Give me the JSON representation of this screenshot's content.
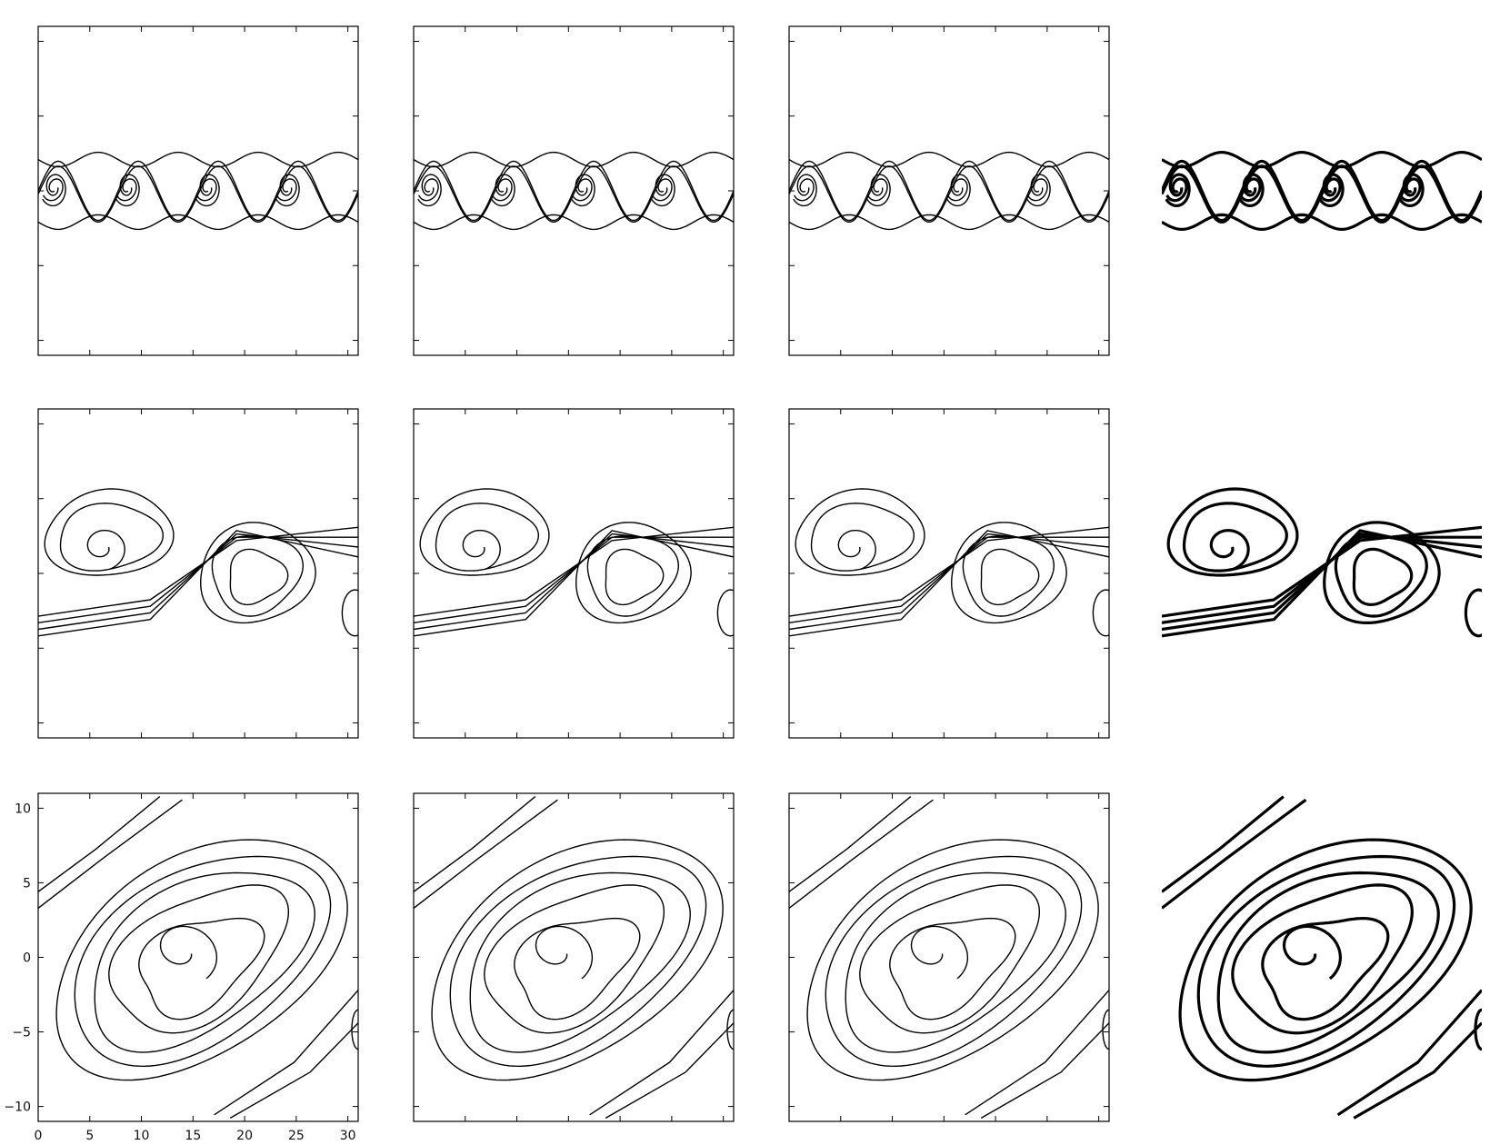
{
  "chart_data": [
    {
      "type": "contour",
      "row": 1,
      "col": 1,
      "stage": "early",
      "xlim": [
        0,
        31
      ],
      "ylim": [
        -11,
        11
      ],
      "x_ticks": [
        0,
        5,
        10,
        15,
        20,
        25,
        30
      ],
      "y_ticks": [
        -10,
        -5,
        0,
        5,
        10
      ],
      "frame": true,
      "grid": false
    },
    {
      "type": "contour",
      "row": 1,
      "col": 2,
      "stage": "early",
      "xlim": [
        0,
        31
      ],
      "ylim": [
        -11,
        11
      ],
      "x_ticks": [
        0,
        5,
        10,
        15,
        20,
        25,
        30
      ],
      "y_ticks": [
        -10,
        -5,
        0,
        5,
        10
      ],
      "frame": true,
      "grid": false
    },
    {
      "type": "contour",
      "row": 1,
      "col": 3,
      "stage": "early",
      "xlim": [
        0,
        31
      ],
      "ylim": [
        -11,
        11
      ],
      "x_ticks": [
        0,
        5,
        10,
        15,
        20,
        25,
        30
      ],
      "y_ticks": [
        -10,
        -5,
        0,
        5,
        10
      ],
      "frame": true,
      "grid": false
    },
    {
      "type": "contour",
      "row": 1,
      "col": 4,
      "stage": "early",
      "xlim": [
        0,
        31
      ],
      "ylim": [
        -11,
        11
      ],
      "frame": false,
      "grid": false
    },
    {
      "type": "contour",
      "row": 2,
      "col": 1,
      "stage": "middle",
      "xlim": [
        0,
        31
      ],
      "ylim": [
        -11,
        11
      ],
      "x_ticks": [
        0,
        5,
        10,
        15,
        20,
        25,
        30
      ],
      "y_ticks": [
        -10,
        -5,
        0,
        5,
        10
      ],
      "frame": true,
      "grid": false
    },
    {
      "type": "contour",
      "row": 2,
      "col": 2,
      "stage": "middle",
      "xlim": [
        0,
        31
      ],
      "ylim": [
        -11,
        11
      ],
      "x_ticks": [
        0,
        5,
        10,
        15,
        20,
        25,
        30
      ],
      "y_ticks": [
        -10,
        -5,
        0,
        5,
        10
      ],
      "frame": true,
      "grid": false
    },
    {
      "type": "contour",
      "row": 2,
      "col": 3,
      "stage": "middle",
      "xlim": [
        0,
        31
      ],
      "ylim": [
        -11,
        11
      ],
      "x_ticks": [
        0,
        5,
        10,
        15,
        20,
        25,
        30
      ],
      "y_ticks": [
        -10,
        -5,
        0,
        5,
        10
      ],
      "frame": true,
      "grid": false
    },
    {
      "type": "contour",
      "row": 2,
      "col": 4,
      "stage": "middle",
      "xlim": [
        0,
        31
      ],
      "ylim": [
        -11,
        11
      ],
      "frame": false,
      "grid": false
    },
    {
      "type": "contour",
      "row": 3,
      "col": 1,
      "stage": "late",
      "xlim": [
        0,
        31
      ],
      "ylim": [
        -11,
        11
      ],
      "x_ticks": [
        0,
        5,
        10,
        15,
        20,
        25,
        30
      ],
      "y_ticks": [
        -10,
        -5,
        0,
        5,
        10
      ],
      "x_tick_labels": [
        "0",
        "5",
        "10",
        "15",
        "20",
        "25",
        "30"
      ],
      "y_tick_labels": [
        "10",
        "5",
        "0",
        "−5",
        "−10"
      ],
      "frame": true,
      "grid": false
    },
    {
      "type": "contour",
      "row": 3,
      "col": 2,
      "stage": "late",
      "xlim": [
        0,
        31
      ],
      "ylim": [
        -11,
        11
      ],
      "x_ticks": [
        0,
        5,
        10,
        15,
        20,
        25,
        30
      ],
      "y_ticks": [
        -10,
        -5,
        0,
        5,
        10
      ],
      "frame": true,
      "grid": false
    },
    {
      "type": "contour",
      "row": 3,
      "col": 3,
      "stage": "late",
      "xlim": [
        0,
        31
      ],
      "ylim": [
        -11,
        11
      ],
      "x_ticks": [
        0,
        5,
        10,
        15,
        20,
        25,
        30
      ],
      "y_ticks": [
        -10,
        -5,
        0,
        5,
        10
      ],
      "frame": true,
      "grid": false
    },
    {
      "type": "contour",
      "row": 3,
      "col": 4,
      "stage": "late",
      "xlim": [
        0,
        31
      ],
      "ylim": [
        -11,
        11
      ],
      "frame": false,
      "grid": false
    }
  ],
  "colors": {
    "line": "#000000",
    "background": "#ffffff"
  }
}
